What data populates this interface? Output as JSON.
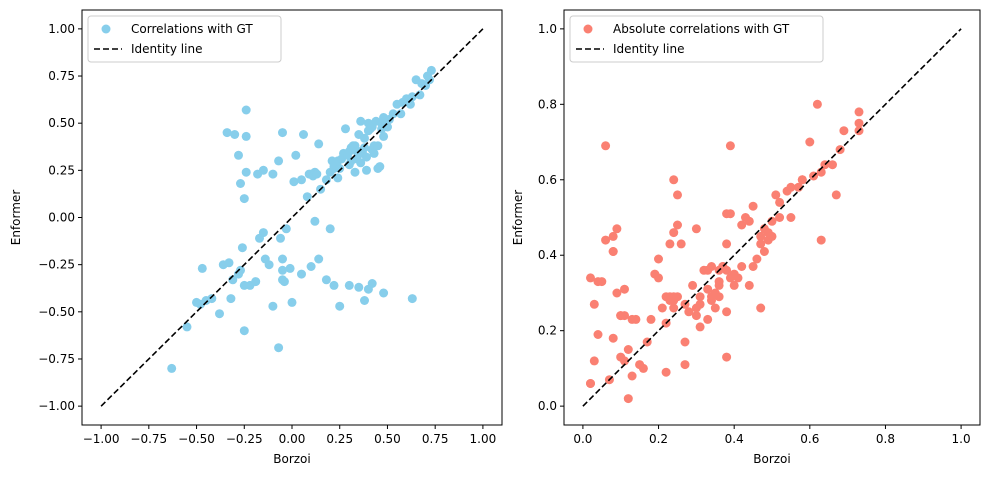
{
  "chart_data": [
    {
      "type": "scatter",
      "xlabel": "Borzoi",
      "ylabel": "Enformer",
      "xlim": [
        -1.1,
        1.1
      ],
      "ylim": [
        -1.1,
        1.1
      ],
      "xticks": [
        -1.0,
        -0.75,
        -0.5,
        -0.25,
        0.0,
        0.25,
        0.5,
        0.75,
        1.0
      ],
      "yticks": [
        -1.0,
        -0.75,
        -0.5,
        -0.25,
        0.0,
        0.25,
        0.5,
        0.75,
        1.0
      ],
      "xtick_labels": [
        "−1.00",
        "−0.75",
        "−0.50",
        "−0.25",
        "0.00",
        "0.25",
        "0.50",
        "0.75",
        "1.00"
      ],
      "ytick_labels": [
        "−1.00",
        "−0.75",
        "−0.50",
        "−0.25",
        "0.00",
        "0.25",
        "0.50",
        "0.75",
        "1.00"
      ],
      "grid": false,
      "legend_position": "top-left",
      "series": [
        {
          "name": "Correlations with GT",
          "color": "#87ceeb",
          "marker": "circle",
          "x": [
            -0.63,
            -0.55,
            -0.5,
            -0.48,
            -0.47,
            -0.45,
            -0.42,
            -0.38,
            -0.36,
            -0.33,
            -0.32,
            -0.31,
            -0.28,
            -0.27,
            -0.26,
            -0.25,
            -0.25,
            -0.24,
            -0.24,
            -0.22,
            -0.19,
            -0.17,
            -0.15,
            -0.14,
            -0.12,
            -0.1,
            -0.07,
            -0.07,
            -0.05,
            -0.05,
            -0.05,
            -0.04,
            -0.03,
            0.01,
            0.02,
            0.05,
            0.06,
            0.08,
            0.09,
            0.1,
            0.11,
            0.12,
            0.13,
            0.14,
            0.15,
            0.18,
            0.2,
            0.21,
            0.22,
            0.22,
            0.24,
            0.24,
            0.25,
            0.26,
            0.27,
            0.28,
            0.29,
            0.3,
            0.3,
            0.31,
            0.31,
            0.32,
            0.33,
            0.33,
            0.34,
            0.34,
            0.35,
            0.35,
            0.36,
            0.36,
            0.37,
            0.38,
            0.38,
            0.39,
            0.39,
            0.4,
            0.4,
            0.41,
            0.42,
            0.42,
            0.43,
            0.43,
            0.44,
            0.45,
            0.45,
            0.46,
            0.47,
            0.47,
            0.48,
            0.48,
            0.5,
            0.51,
            0.53,
            0.55,
            0.57,
            0.58,
            0.6,
            0.62,
            0.63,
            0.65,
            0.67,
            0.68,
            0.7,
            0.71,
            0.72,
            0.73,
            -0.34,
            -0.3,
            -0.28,
            -0.27,
            -0.25,
            -0.24,
            -0.18,
            -0.15,
            -0.1,
            -0.06,
            -0.05,
            -0.01,
            0.0,
            0.05,
            0.1,
            0.12,
            0.14,
            0.18,
            0.2,
            0.22,
            0.25,
            0.3,
            0.35,
            0.38,
            0.4,
            0.42,
            0.48,
            0.63
          ],
          "y": [
            -0.8,
            -0.58,
            -0.45,
            -0.46,
            -0.27,
            -0.44,
            -0.43,
            -0.51,
            -0.25,
            -0.24,
            -0.43,
            -0.33,
            -0.3,
            -0.28,
            -0.16,
            -0.36,
            -0.6,
            0.24,
            0.43,
            -0.36,
            -0.34,
            -0.11,
            -0.08,
            -0.22,
            -0.25,
            -0.47,
            -0.69,
            0.3,
            0.45,
            -0.28,
            -0.33,
            -0.34,
            -0.06,
            0.19,
            0.33,
            0.2,
            0.44,
            0.11,
            0.23,
            0.23,
            0.22,
            0.24,
            0.23,
            0.39,
            0.15,
            0.2,
            0.24,
            0.3,
            0.26,
            0.27,
            0.3,
            0.21,
            0.26,
            0.31,
            0.34,
            0.47,
            0.33,
            0.35,
            0.28,
            0.3,
            0.37,
            0.38,
            0.38,
            0.24,
            0.31,
            0.35,
            0.44,
            0.35,
            0.51,
            0.29,
            0.34,
            0.37,
            0.42,
            0.25,
            0.32,
            0.5,
            0.46,
            0.47,
            0.48,
            0.36,
            0.34,
            0.38,
            0.51,
            0.38,
            0.26,
            0.27,
            0.47,
            0.5,
            0.53,
            0.43,
            0.48,
            0.52,
            0.55,
            0.6,
            0.55,
            0.61,
            0.63,
            0.6,
            0.64,
            0.73,
            0.65,
            0.71,
            0.7,
            0.75,
            0.73,
            0.78,
            0.45,
            0.44,
            0.33,
            0.18,
            0.1,
            0.57,
            0.23,
            0.25,
            0.23,
            -0.11,
            -0.22,
            -0.27,
            -0.45,
            -0.3,
            -0.26,
            -0.02,
            -0.22,
            -0.33,
            -0.06,
            -0.36,
            -0.47,
            -0.36,
            -0.37,
            -0.44,
            -0.38,
            -0.35,
            -0.4,
            -0.43
          ]
        },
        {
          "name": "Identity line",
          "color": "#000000",
          "style": "dashed",
          "x": [
            -1.0,
            1.0
          ],
          "y": [
            -1.0,
            1.0
          ]
        }
      ]
    },
    {
      "type": "scatter",
      "xlabel": "Borzoi",
      "ylabel": "Enformer",
      "xlim": [
        -0.05,
        1.05
      ],
      "ylim": [
        -0.05,
        1.05
      ],
      "xticks": [
        0.0,
        0.2,
        0.4,
        0.6,
        0.8,
        1.0
      ],
      "yticks": [
        0.0,
        0.2,
        0.4,
        0.6,
        0.8,
        1.0
      ],
      "xtick_labels": [
        "0.0",
        "0.2",
        "0.4",
        "0.6",
        "0.8",
        "1.0"
      ],
      "ytick_labels": [
        "0.0",
        "0.2",
        "0.4",
        "0.6",
        "0.8",
        "1.0"
      ],
      "grid": false,
      "legend_position": "top-left",
      "series": [
        {
          "name": "Absolute correlations with GT",
          "color": "#fa8072",
          "marker": "circle",
          "x": [
            0.02,
            0.02,
            0.03,
            0.04,
            0.04,
            0.05,
            0.06,
            0.08,
            0.08,
            0.09,
            0.09,
            0.1,
            0.1,
            0.11,
            0.12,
            0.12,
            0.13,
            0.14,
            0.15,
            0.16,
            0.18,
            0.19,
            0.2,
            0.21,
            0.22,
            0.23,
            0.23,
            0.24,
            0.24,
            0.25,
            0.25,
            0.26,
            0.27,
            0.28,
            0.29,
            0.3,
            0.3,
            0.31,
            0.32,
            0.33,
            0.33,
            0.34,
            0.34,
            0.35,
            0.35,
            0.36,
            0.36,
            0.37,
            0.37,
            0.38,
            0.38,
            0.39,
            0.39,
            0.4,
            0.41,
            0.42,
            0.43,
            0.44,
            0.45,
            0.46,
            0.47,
            0.48,
            0.48,
            0.49,
            0.5,
            0.51,
            0.52,
            0.54,
            0.55,
            0.57,
            0.58,
            0.6,
            0.61,
            0.63,
            0.64,
            0.66,
            0.67,
            0.68,
            0.69,
            0.73,
            0.73,
            0.73,
            0.02,
            0.03,
            0.07,
            0.1,
            0.11,
            0.13,
            0.17,
            0.2,
            0.22,
            0.24,
            0.25,
            0.27,
            0.3,
            0.31,
            0.33,
            0.36,
            0.38,
            0.38,
            0.39,
            0.42,
            0.44,
            0.47,
            0.5,
            0.58,
            0.62,
            0.63,
            0.24,
            0.38,
            0.08,
            0.06,
            0.24,
            0.27,
            0.31,
            0.34,
            0.36,
            0.4,
            0.45,
            0.47,
            0.49,
            0.52,
            0.55,
            0.23,
            0.22,
            0.11,
            0.08
          ],
          "y": [
            0.34,
            0.06,
            0.27,
            0.19,
            0.33,
            0.33,
            0.69,
            0.45,
            0.18,
            0.3,
            0.47,
            0.24,
            0.24,
            0.31,
            0.15,
            0.02,
            0.23,
            0.23,
            0.11,
            0.1,
            0.23,
            0.35,
            0.39,
            0.26,
            0.29,
            0.29,
            0.43,
            0.28,
            0.29,
            0.29,
            0.48,
            0.43,
            0.11,
            0.25,
            0.32,
            0.47,
            0.26,
            0.29,
            0.36,
            0.31,
            0.36,
            0.37,
            0.29,
            0.3,
            0.26,
            0.33,
            0.36,
            0.37,
            0.37,
            0.36,
            0.43,
            0.51,
            0.69,
            0.35,
            0.34,
            0.48,
            0.5,
            0.49,
            0.53,
            0.39,
            0.43,
            0.47,
            0.41,
            0.46,
            0.49,
            0.56,
            0.5,
            0.57,
            0.58,
            0.58,
            0.6,
            0.7,
            0.61,
            0.62,
            0.64,
            0.64,
            0.56,
            0.68,
            0.73,
            0.73,
            0.75,
            0.78,
            0.06,
            0.12,
            0.07,
            0.13,
            0.24,
            0.08,
            0.17,
            0.34,
            0.09,
            0.6,
            0.56,
            0.17,
            0.24,
            0.21,
            0.23,
            0.32,
            0.13,
            0.25,
            0.34,
            0.37,
            0.32,
            0.26,
            0.45,
            0.6,
            0.8,
            0.44,
            0.46,
            0.51,
            0.41,
            0.44,
            0.26,
            0.27,
            0.27,
            0.28,
            0.29,
            0.32,
            0.37,
            0.45,
            0.44,
            0.54,
            0.5,
            0.28,
            0.22,
            0.12,
            0.41
          ]
        },
        {
          "name": "Identity line",
          "color": "#000000",
          "style": "dashed",
          "x": [
            0.0,
            1.0
          ],
          "y": [
            0.0,
            1.0
          ]
        }
      ]
    }
  ]
}
